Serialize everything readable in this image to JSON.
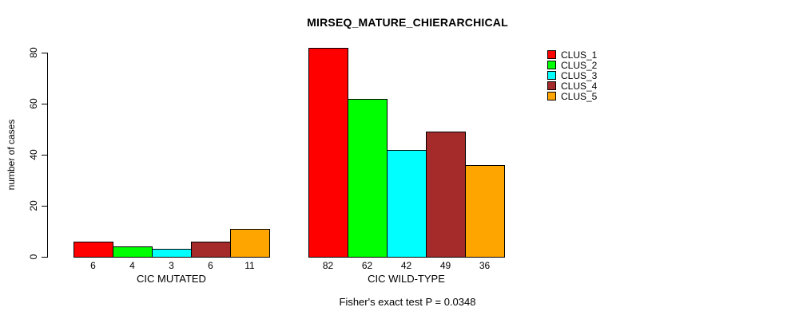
{
  "chart_data": {
    "type": "bar",
    "title": "MIRSEQ_MATURE_CHIERARCHICAL",
    "ylabel": "number of cases",
    "xlabel": "",
    "ylim": [
      0,
      80
    ],
    "yticks": [
      0,
      20,
      40,
      60,
      80
    ],
    "grid": false,
    "legend_position": "top-right",
    "categories": [
      "CIC MUTATED",
      "CIC WILD-TYPE"
    ],
    "series": [
      {
        "name": "CLUS_1",
        "color": "#FF0000",
        "values": [
          6,
          82
        ]
      },
      {
        "name": "CLUS_2",
        "color": "#00FF00",
        "values": [
          4,
          62
        ]
      },
      {
        "name": "CLUS_3",
        "color": "#00FFFF",
        "values": [
          3,
          42
        ]
      },
      {
        "name": "CLUS_4",
        "color": "#A52A2A",
        "values": [
          6,
          49
        ]
      },
      {
        "name": "CLUS_5",
        "color": "#FFA500",
        "values": [
          11,
          36
        ]
      }
    ],
    "bar_value_labels": [
      [
        6,
        4,
        3,
        6,
        11
      ],
      [
        82,
        62,
        42,
        49,
        36
      ]
    ],
    "annotation": "Fisher's exact test P = 0.0348"
  }
}
